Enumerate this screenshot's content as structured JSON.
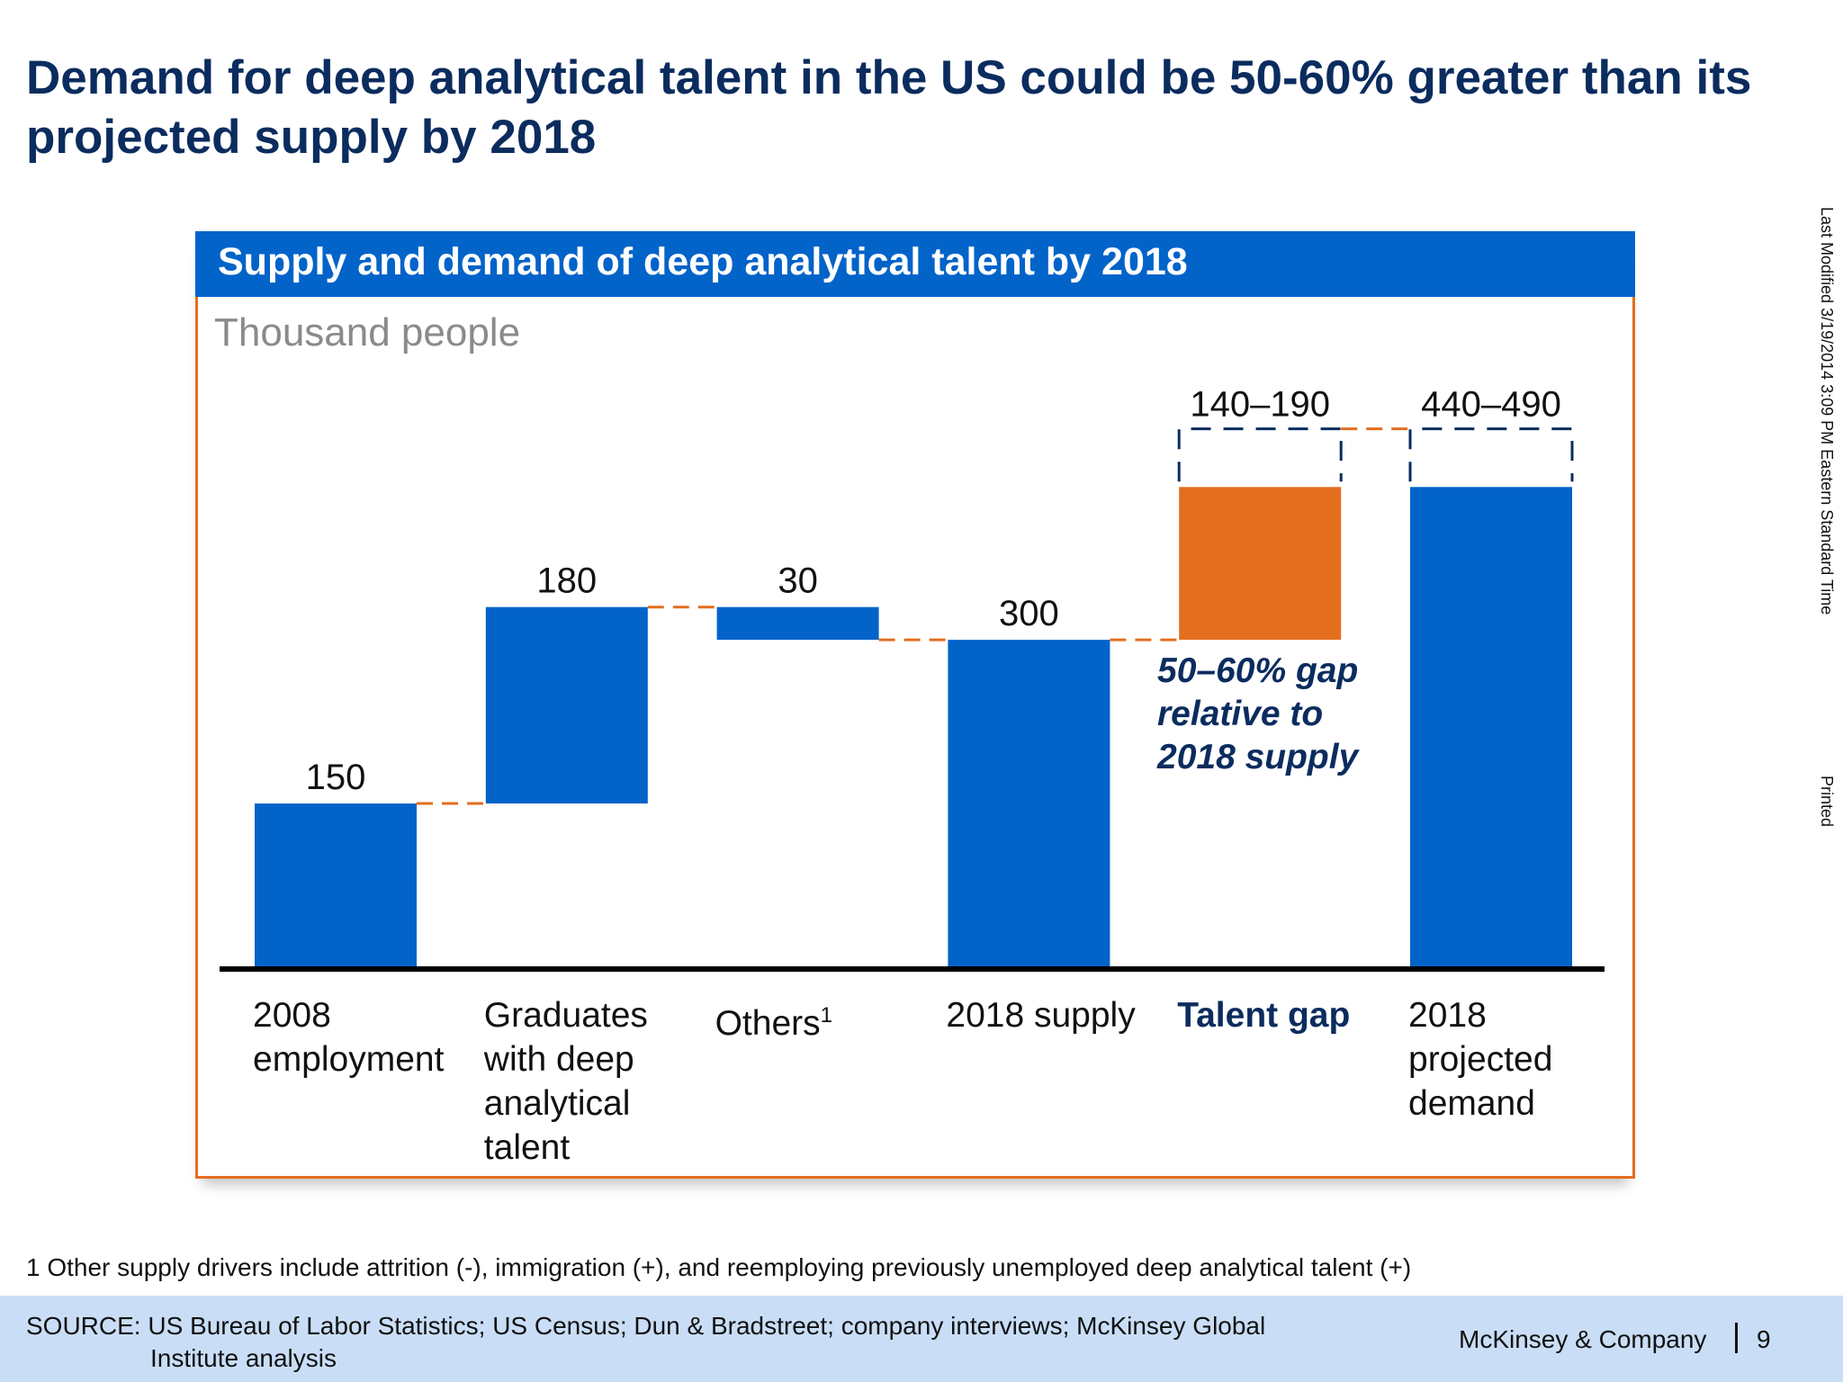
{
  "title": "Demand for deep analytical talent in the US could be 50-60% greater than its projected supply by 2018",
  "side": {
    "modified": "Last Modified 3/19/2014 3:09 PM Eastern Standard Time",
    "printed": "Printed"
  },
  "colors": {
    "supply": "#0263c9",
    "gap": "#e36f1e",
    "navy": "#0b2c5e",
    "connector": "#e36f1e"
  },
  "chart_data": {
    "type": "waterfall",
    "title": "Supply and demand of deep analytical talent by 2018",
    "ylabel": "Thousand people",
    "categories": [
      "2008 employment",
      "Graduates with deep analytical talent",
      "Others",
      "2018 supply",
      "Talent gap",
      "2018 projected demand"
    ],
    "category_labels": [
      {
        "lines": [
          "2008",
          "employment"
        ]
      },
      {
        "lines": [
          "Graduates",
          "with deep",
          "analytical",
          "talent"
        ]
      },
      {
        "lines": [
          "Others"
        ],
        "sup": "1"
      },
      {
        "lines": [
          "2018 supply"
        ]
      },
      {
        "lines": [
          "Talent gap"
        ]
      },
      {
        "lines": [
          "2018",
          "projected",
          "demand"
        ]
      }
    ],
    "bars": [
      {
        "label": "150",
        "start": 0,
        "end": 150,
        "kind": "total"
      },
      {
        "label": "180",
        "start": 150,
        "end": 330,
        "kind": "delta"
      },
      {
        "label": "30",
        "start": 330,
        "end": 300,
        "kind": "delta"
      },
      {
        "label": "300",
        "start": 0,
        "end": 300,
        "kind": "total"
      },
      {
        "label": "140–190",
        "start": 300,
        "end": 440,
        "range_end": 490,
        "kind": "gap"
      },
      {
        "label": "440–490",
        "start": 0,
        "end": 440,
        "range_end": 490,
        "kind": "total"
      }
    ],
    "annotation": [
      "50–60% gap",
      "relative to",
      "2018 supply"
    ]
  },
  "footnote": "1 Other supply drivers include attrition (-), immigration (+), and reemploying previously unemployed deep analytical talent (+)",
  "source": {
    "line1": "SOURCE: US Bureau of Labor Statistics; US Census; Dun & Bradstreet; company interviews; McKinsey Global",
    "line2": "Institute analysis"
  },
  "brand": "McKinsey & Company",
  "page": "9"
}
